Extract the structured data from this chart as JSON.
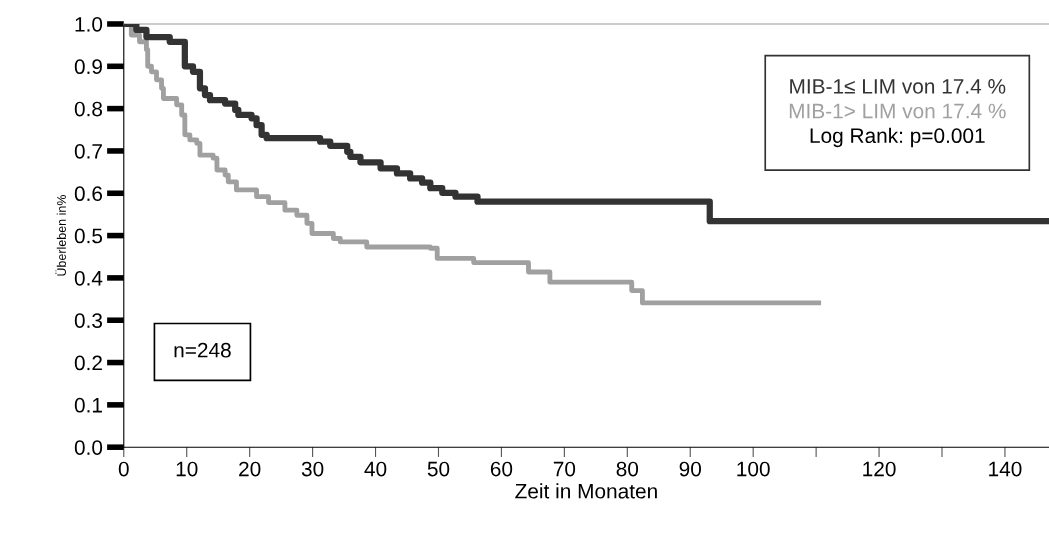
{
  "chart_data": {
    "type": "step",
    "xlabel": "Zeit in Monaten",
    "ylabel": "Überleben in%",
    "xlim": [
      0,
      147
    ],
    "ylim": [
      0,
      1
    ],
    "xticks": [
      0,
      10,
      20,
      30,
      40,
      50,
      60,
      70,
      80,
      90,
      100,
      {
        "value": 110,
        "label": null
      },
      120,
      {
        "value": 130,
        "label": null
      },
      140
    ],
    "yticks": [
      {
        "value": 0,
        "label": "0.0"
      },
      0.1,
      0.2,
      0.3,
      0.4,
      0.5,
      0.6,
      0.7,
      0.8,
      0.9,
      {
        "value": 1,
        "label": "1.0"
      }
    ],
    "legend": "top right",
    "grid": false,
    "annotations": [
      "Log Rank: p=0.001",
      "n=248"
    ],
    "series": [
      {
        "name": "MIB-1≤ LIM von 17.4 %",
        "color": "#333333",
        "x": [
          0,
          2.0,
          3.6,
          7.3,
          9.7,
          11.0,
          12.1,
          12.9,
          13.7,
          16.1,
          17.7,
          18.2,
          20.3,
          21.1,
          21.9,
          22.7,
          31.2,
          32.8,
          35.5,
          36.0,
          37.6,
          40.8,
          43.4,
          45.5,
          47.4,
          48.7,
          50.6,
          52.7,
          56.2,
          93.1,
          147
        ],
        "values": [
          1.0,
          0.986,
          0.969,
          0.958,
          0.9,
          0.887,
          0.848,
          0.832,
          0.82,
          0.812,
          0.797,
          0.785,
          0.777,
          0.761,
          0.738,
          0.73,
          0.722,
          0.712,
          0.698,
          0.686,
          0.673,
          0.659,
          0.647,
          0.635,
          0.625,
          0.612,
          0.601,
          0.592,
          0.58,
          0.534,
          0.534
        ]
      },
      {
        "name": "MIB-1> LIM von 17.4 %",
        "color": "#a0a0a0",
        "x": [
          0,
          1.2,
          2.5,
          3.6,
          3.8,
          4.4,
          5.2,
          6.0,
          6.3,
          8.4,
          9.2,
          9.7,
          10.5,
          11.6,
          12.1,
          14.2,
          14.8,
          16.1,
          16.6,
          17.9,
          21.1,
          23.0,
          25.6,
          27.5,
          29.1,
          29.9,
          33.3,
          34.4,
          38.6,
          48.7,
          49.8,
          55.6,
          64.3,
          67.7,
          80.7,
          82.4,
          110.4
        ],
        "values": [
          1.0,
          0.974,
          0.958,
          0.939,
          0.9,
          0.887,
          0.868,
          0.848,
          0.824,
          0.809,
          0.785,
          0.738,
          0.726,
          0.718,
          0.69,
          0.683,
          0.655,
          0.643,
          0.627,
          0.608,
          0.592,
          0.578,
          0.56,
          0.548,
          0.529,
          0.505,
          0.493,
          0.485,
          0.473,
          0.47,
          0.446,
          0.436,
          0.414,
          0.39,
          0.37,
          0.341,
          0.341
        ]
      }
    ]
  }
}
